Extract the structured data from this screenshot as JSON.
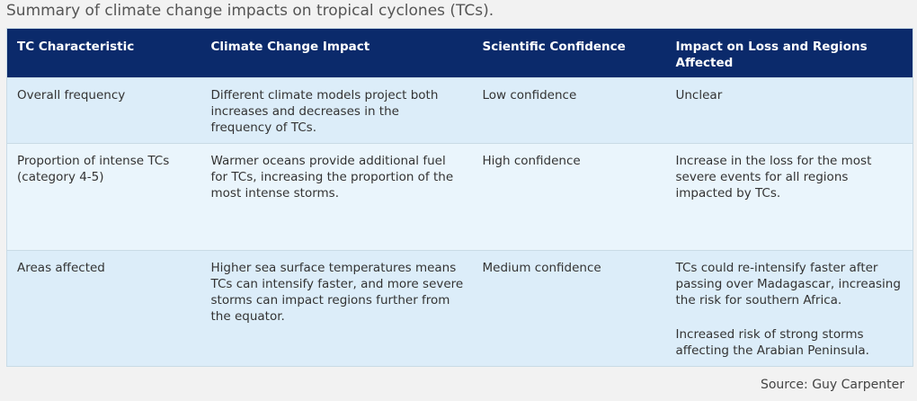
{
  "caption": "Summary of climate change impacts on tropical cyclones (TCs).",
  "table": {
    "headers": [
      "TC Characteristic",
      "Climate Change Impact",
      "Scientific Confidence",
      "Impact on Loss and Regions Affected"
    ],
    "rows": [
      {
        "characteristic": "Overall frequency",
        "impact": "Different climate models project both increases and decreases in the frequency of TCs.",
        "confidence": "Low confidence",
        "loss": [
          "Unclear"
        ]
      },
      {
        "characteristic": "Proportion of intense TCs (category 4-5)",
        "impact": "Warmer oceans provide additional fuel for TCs, increasing the proportion of the most intense storms.",
        "confidence": "High confidence",
        "loss": [
          "Increase in the loss for the most severe events for all regions impacted by TCs."
        ]
      },
      {
        "characteristic": "Areas affected",
        "impact": "Higher sea surface temperatures means TCs can intensify faster, and more severe storms can impact regions further from the equator.",
        "confidence": "Medium confidence",
        "loss": [
          "TCs could re-intensify faster after passing over Madagascar, increasing the risk for southern Africa.",
          "Increased risk of strong storms affecting the Arabian Peninsula."
        ]
      }
    ]
  },
  "source": "Source: Guy Carpenter",
  "colors": {
    "header_bg": "#0b2a6b",
    "row_bg_light": "#dcedf9",
    "row_bg_lighter": "#eaf5fc",
    "page_bg": "#f2f2f2"
  }
}
